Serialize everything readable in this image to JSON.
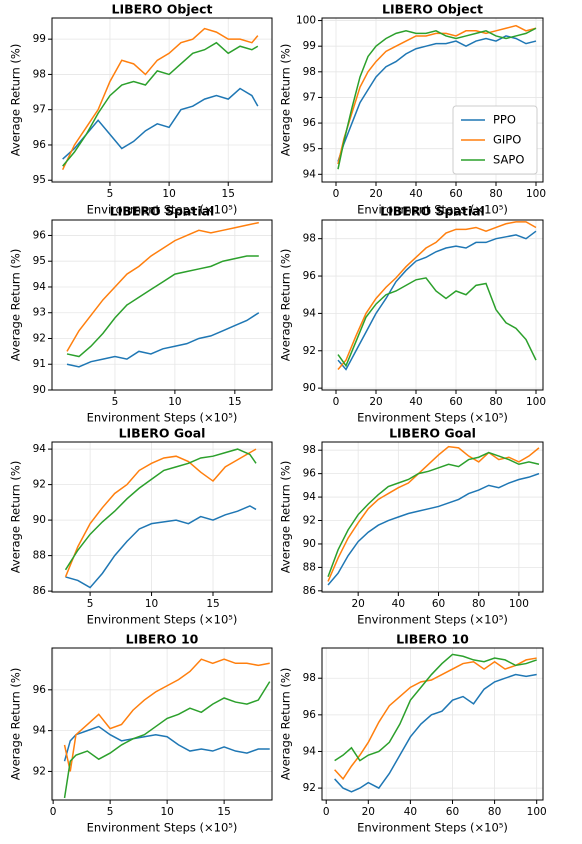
{
  "chart_data": [
    {
      "type": "line",
      "title": "LIBERO Object",
      "xlabel": "Environment Steps (×10⁵)",
      "ylabel": "Average Return (%)",
      "x": [
        1,
        2,
        3,
        4,
        5,
        6,
        7,
        8,
        9,
        10,
        11,
        12,
        13,
        14,
        15,
        16,
        17,
        17.5
      ],
      "series": [
        {
          "color": "#1f77b4",
          "values": [
            95.6,
            95.9,
            96.3,
            96.7,
            96.3,
            95.9,
            96.1,
            96.4,
            96.6,
            96.5,
            97.0,
            97.1,
            97.3,
            97.4,
            97.3,
            97.6,
            97.4,
            97.1
          ]
        },
        {
          "color": "#ff7f0e",
          "values": [
            95.3,
            96.0,
            96.5,
            97.0,
            97.8,
            98.4,
            98.3,
            98.0,
            98.4,
            98.6,
            98.9,
            99.0,
            99.3,
            99.2,
            99.0,
            99.0,
            98.9,
            99.1
          ]
        },
        {
          "color": "#2ca02c",
          "values": [
            95.4,
            95.8,
            96.3,
            96.9,
            97.4,
            97.7,
            97.8,
            97.7,
            98.1,
            98.0,
            98.3,
            98.6,
            98.7,
            98.9,
            98.6,
            98.8,
            98.7,
            98.8
          ]
        }
      ],
      "xlim": [
        0.1,
        18.7
      ],
      "xticks": [
        5,
        10,
        15
      ],
      "ylim": [
        94.95,
        99.6
      ],
      "yticks": [
        95,
        96,
        97,
        98,
        99
      ],
      "grid": true
    },
    {
      "type": "line",
      "title": "LIBERO Object",
      "xlabel": "Environment Steps (×10⁵)",
      "ylabel": "Average Return (%)",
      "x": [
        1,
        4,
        8,
        12,
        16,
        20,
        25,
        30,
        35,
        40,
        45,
        50,
        55,
        60,
        65,
        70,
        75,
        80,
        85,
        90,
        95,
        100
      ],
      "series": [
        {
          "name": "PPO",
          "color": "#1f77b4",
          "values": [
            94.5,
            95.2,
            96.0,
            96.8,
            97.3,
            97.8,
            98.2,
            98.4,
            98.7,
            98.9,
            99.0,
            99.1,
            99.1,
            99.2,
            99.0,
            99.2,
            99.3,
            99.2,
            99.4,
            99.3,
            99.1,
            99.2
          ]
        },
        {
          "name": "GIPO",
          "color": "#ff7f0e",
          "values": [
            94.4,
            95.4,
            96.4,
            97.4,
            98.0,
            98.4,
            98.8,
            99.0,
            99.2,
            99.4,
            99.4,
            99.5,
            99.5,
            99.4,
            99.6,
            99.6,
            99.5,
            99.6,
            99.7,
            99.8,
            99.6,
            99.7
          ]
        },
        {
          "name": "SAPO",
          "color": "#2ca02c",
          "values": [
            94.2,
            95.3,
            96.6,
            97.8,
            98.6,
            99.0,
            99.3,
            99.5,
            99.6,
            99.5,
            99.5,
            99.6,
            99.4,
            99.3,
            99.4,
            99.5,
            99.6,
            99.4,
            99.3,
            99.4,
            99.5,
            99.7
          ]
        }
      ],
      "xlim": [
        -7,
        103.5
      ],
      "xticks": [
        0,
        20,
        40,
        60,
        80,
        100
      ],
      "ylim": [
        93.7,
        100.1
      ],
      "yticks": [
        94,
        95,
        96,
        97,
        98,
        99,
        100
      ],
      "grid": true,
      "legend": "lower right"
    },
    {
      "type": "line",
      "title": "LIBERO Spatial",
      "xlabel": "Environment Steps (×10⁵)",
      "ylabel": "Average Return (%)",
      "x": [
        1,
        2,
        3,
        4,
        5,
        6,
        7,
        8,
        9,
        10,
        11,
        12,
        13,
        14,
        15,
        16,
        17
      ],
      "series": [
        {
          "color": "#1f77b4",
          "values": [
            91.0,
            90.9,
            91.1,
            91.2,
            91.3,
            91.2,
            91.5,
            91.4,
            91.6,
            91.7,
            91.8,
            92.0,
            92.1,
            92.3,
            92.5,
            92.7,
            93.0
          ]
        },
        {
          "color": "#ff7f0e",
          "values": [
            91.5,
            92.3,
            92.9,
            93.5,
            94.0,
            94.5,
            94.8,
            95.2,
            95.5,
            95.8,
            96.0,
            96.2,
            96.1,
            96.2,
            96.3,
            96.4,
            96.5
          ]
        },
        {
          "color": "#2ca02c",
          "values": [
            91.4,
            91.3,
            91.7,
            92.2,
            92.8,
            93.3,
            93.6,
            93.9,
            94.2,
            94.5,
            94.6,
            94.7,
            94.8,
            95.0,
            95.1,
            95.2,
            95.2
          ]
        }
      ],
      "xlim": [
        -0.25,
        18.1
      ],
      "xticks": [
        5,
        10,
        15
      ],
      "ylim": [
        90,
        96.6
      ],
      "yticks": [
        90,
        91,
        92,
        93,
        94,
        95,
        96
      ],
      "grid": true
    },
    {
      "type": "line",
      "title": "LIBERO Spatial",
      "xlabel": "Environment Steps (×10⁵)",
      "ylabel": "Average Return (%)",
      "x": [
        1,
        5,
        10,
        15,
        20,
        25,
        30,
        35,
        40,
        45,
        50,
        55,
        60,
        65,
        70,
        75,
        80,
        85,
        90,
        95,
        100
      ],
      "series": [
        {
          "color": "#1f77b4",
          "values": [
            91.5,
            91.0,
            92.0,
            93.0,
            94.0,
            94.8,
            95.7,
            96.3,
            96.8,
            97.0,
            97.3,
            97.5,
            97.6,
            97.5,
            97.8,
            97.8,
            98.0,
            98.1,
            98.2,
            98.0,
            98.4
          ]
        },
        {
          "color": "#ff7f0e",
          "values": [
            91.0,
            91.5,
            92.8,
            94.0,
            94.8,
            95.4,
            95.9,
            96.5,
            97.0,
            97.5,
            97.8,
            98.3,
            98.5,
            98.5,
            98.6,
            98.4,
            98.6,
            98.8,
            98.9,
            98.9,
            98.6
          ]
        },
        {
          "color": "#2ca02c",
          "values": [
            91.8,
            91.2,
            92.5,
            93.8,
            94.5,
            95.0,
            95.2,
            95.5,
            95.8,
            95.9,
            95.2,
            94.8,
            95.2,
            95.0,
            95.5,
            95.6,
            94.2,
            93.5,
            93.2,
            92.6,
            91.5
          ]
        }
      ],
      "xlim": [
        -7,
        103.5
      ],
      "xticks": [
        0,
        20,
        40,
        60,
        80,
        100
      ],
      "ylim": [
        89.9,
        99.0
      ],
      "yticks": [
        90,
        92,
        94,
        96,
        98
      ],
      "grid": true
    },
    {
      "type": "line",
      "title": "LIBERO Goal",
      "xlabel": "Environment Steps (×10⁵)",
      "ylabel": "Average Return (%)",
      "x": [
        3,
        4,
        5,
        6,
        7,
        8,
        9,
        10,
        11,
        12,
        13,
        14,
        15,
        16,
        17,
        18,
        18.5
      ],
      "series": [
        {
          "color": "#1f77b4",
          "values": [
            86.8,
            86.6,
            86.2,
            87.0,
            88.0,
            88.8,
            89.5,
            89.8,
            89.9,
            90.0,
            89.8,
            90.2,
            90.0,
            90.3,
            90.5,
            90.8,
            90.6
          ]
        },
        {
          "color": "#ff7f0e",
          "values": [
            86.8,
            88.5,
            89.8,
            90.7,
            91.5,
            92.0,
            92.8,
            93.2,
            93.5,
            93.6,
            93.3,
            92.7,
            92.2,
            93.0,
            93.4,
            93.8,
            94.0
          ]
        },
        {
          "color": "#2ca02c",
          "values": [
            87.2,
            88.3,
            89.2,
            89.9,
            90.5,
            91.2,
            91.8,
            92.3,
            92.8,
            93.0,
            93.2,
            93.5,
            93.6,
            93.8,
            94.0,
            93.7,
            93.2
          ]
        }
      ],
      "xlim": [
        1.9,
        19.8
      ],
      "xticks": [
        5,
        10,
        15
      ],
      "ylim": [
        85.95,
        94.4
      ],
      "yticks": [
        86,
        88,
        90,
        92,
        94
      ],
      "grid": true
    },
    {
      "type": "line",
      "title": "LIBERO Goal",
      "xlabel": "Environment Steps (×10⁵)",
      "ylabel": "Average Return (%)",
      "x": [
        5,
        10,
        15,
        20,
        25,
        30,
        35,
        40,
        45,
        50,
        55,
        60,
        65,
        70,
        75,
        80,
        85,
        90,
        95,
        100,
        105,
        110
      ],
      "series": [
        {
          "color": "#1f77b4",
          "values": [
            86.5,
            87.5,
            89.0,
            90.2,
            91.0,
            91.6,
            92.0,
            92.3,
            92.6,
            92.8,
            93.0,
            93.2,
            93.5,
            93.8,
            94.3,
            94.6,
            95.0,
            94.8,
            95.2,
            95.5,
            95.7,
            96.0
          ]
        },
        {
          "color": "#ff7f0e",
          "values": [
            86.8,
            88.8,
            90.5,
            91.8,
            93.0,
            93.8,
            94.3,
            94.8,
            95.2,
            96.0,
            96.8,
            97.6,
            98.3,
            98.2,
            97.5,
            97.0,
            97.8,
            97.2,
            97.4,
            97.0,
            97.5,
            98.2
          ]
        },
        {
          "color": "#2ca02c",
          "values": [
            87.2,
            89.5,
            91.2,
            92.5,
            93.4,
            94.2,
            94.9,
            95.2,
            95.5,
            96.0,
            96.2,
            96.5,
            96.8,
            96.6,
            97.2,
            97.4,
            97.8,
            97.5,
            97.2,
            96.8,
            97.0,
            96.8
          ]
        }
      ],
      "xlim": [
        2,
        112
      ],
      "xticks": [
        20,
        40,
        60,
        80,
        100
      ],
      "ylim": [
        85.9,
        98.7
      ],
      "yticks": [
        86,
        88,
        90,
        92,
        94,
        96,
        98
      ],
      "grid": true
    },
    {
      "type": "line",
      "title": "LIBERO 10",
      "xlabel": "Environment Steps (×10⁵)",
      "ylabel": "Average Return (%)",
      "x": [
        1,
        1.5,
        2,
        3,
        4,
        5,
        6,
        7,
        8,
        9,
        10,
        11,
        12,
        13,
        14,
        15,
        16,
        17,
        18,
        19
      ],
      "series": [
        {
          "color": "#1f77b4",
          "values": [
            92.5,
            93.5,
            93.8,
            94.0,
            94.2,
            93.8,
            93.5,
            93.6,
            93.7,
            93.8,
            93.7,
            93.3,
            93.0,
            93.1,
            93.0,
            93.2,
            93.0,
            92.9,
            93.1,
            93.1
          ]
        },
        {
          "color": "#ff7f0e",
          "values": [
            93.3,
            92.0,
            93.8,
            94.3,
            94.8,
            94.1,
            94.3,
            95.0,
            95.5,
            95.9,
            96.2,
            96.5,
            96.9,
            97.5,
            97.3,
            97.5,
            97.3,
            97.3,
            97.2,
            97.3
          ]
        },
        {
          "color": "#2ca02c",
          "values": [
            90.7,
            92.5,
            92.8,
            93.0,
            92.6,
            92.9,
            93.3,
            93.6,
            93.8,
            94.2,
            94.6,
            94.8,
            95.1,
            94.9,
            95.3,
            95.6,
            95.4,
            95.3,
            95.5,
            96.4
          ]
        }
      ],
      "xlim": [
        -0.1,
        19.2
      ],
      "xticks": [
        0,
        5,
        10,
        15
      ],
      "ylim": [
        90.6,
        98.05
      ],
      "yticks": [
        92,
        94,
        96
      ],
      "grid": true
    },
    {
      "type": "line",
      "title": "LIBERO 10",
      "xlabel": "Environment Steps (×10⁵)",
      "ylabel": "Average Return (%)",
      "x": [
        4,
        8,
        12,
        16,
        20,
        25,
        30,
        35,
        40,
        45,
        50,
        55,
        60,
        65,
        70,
        75,
        80,
        85,
        90,
        95,
        100
      ],
      "series": [
        {
          "color": "#1f77b4",
          "values": [
            92.5,
            92.0,
            91.8,
            92.0,
            92.3,
            92.0,
            92.8,
            93.8,
            94.8,
            95.5,
            96.0,
            96.2,
            96.8,
            97.0,
            96.6,
            97.4,
            97.8,
            98.0,
            98.2,
            98.1,
            98.2
          ]
        },
        {
          "color": "#ff7f0e",
          "values": [
            93.0,
            92.5,
            93.2,
            93.8,
            94.5,
            95.6,
            96.5,
            97.0,
            97.5,
            97.8,
            97.9,
            98.2,
            98.5,
            98.8,
            98.9,
            98.5,
            98.9,
            98.5,
            98.7,
            99.0,
            99.1
          ]
        },
        {
          "color": "#2ca02c",
          "values": [
            93.5,
            93.8,
            94.2,
            93.5,
            93.8,
            94.0,
            94.5,
            95.5,
            96.8,
            97.5,
            98.2,
            98.8,
            99.3,
            99.2,
            99.0,
            98.9,
            99.1,
            99.0,
            98.7,
            98.8,
            99.0
          ]
        }
      ],
      "xlim": [
        -2,
        103
      ],
      "xticks": [
        0,
        20,
        40,
        60,
        80,
        100
      ],
      "ylim": [
        91.35,
        99.65
      ],
      "yticks": [
        92,
        94,
        96,
        98
      ],
      "grid": true
    }
  ]
}
